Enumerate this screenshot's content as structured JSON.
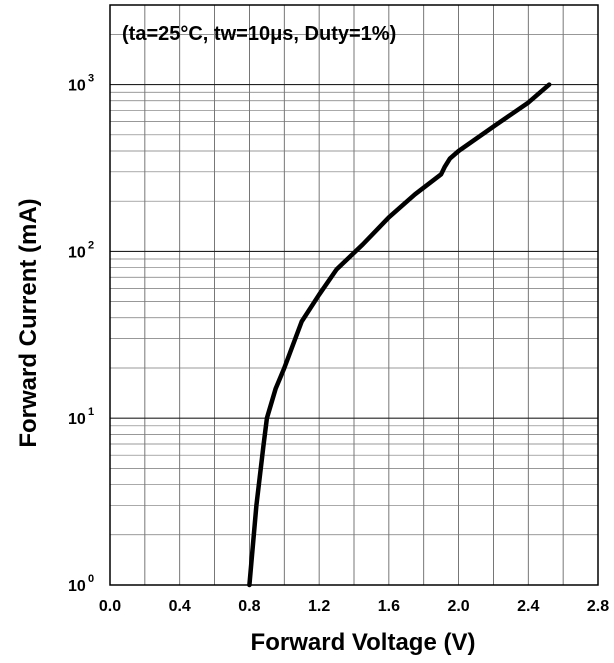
{
  "chart_data": {
    "type": "line",
    "title": "",
    "annotation": "(ta=25°C, tw=10μs, Duty=1%)",
    "xlabel": "Forward Voltage (V)",
    "ylabel": "Forward Current (mA)",
    "xlim": [
      0.0,
      2.8
    ],
    "ylim": [
      1,
      3000
    ],
    "yscale": "log",
    "grid": true,
    "x_tick_labels": [
      "0.0",
      "0.4",
      "0.8",
      "1.2",
      "1.6",
      "2.0",
      "2.4",
      "2.8"
    ],
    "y_tick_labels": [
      {
        "base": "10",
        "exp": "0"
      },
      {
        "base": "10",
        "exp": "1"
      },
      {
        "base": "10",
        "exp": "2"
      },
      {
        "base": "10",
        "exp": "3"
      }
    ],
    "series": [
      {
        "x": [
          0.8,
          0.84,
          0.88,
          0.9,
          0.95,
          1.0,
          1.1,
          1.2,
          1.3,
          1.45,
          1.6,
          1.75,
          1.9,
          1.92,
          1.95,
          2.0,
          2.2,
          2.4,
          2.52
        ],
        "y": [
          1.0,
          3.0,
          6.8,
          10.0,
          15.0,
          20.0,
          38.0,
          55.0,
          78.0,
          110.0,
          160.0,
          220.0,
          290.0,
          320.0,
          360.0,
          400.0,
          560.0,
          780.0,
          1000.0
        ]
      }
    ]
  }
}
